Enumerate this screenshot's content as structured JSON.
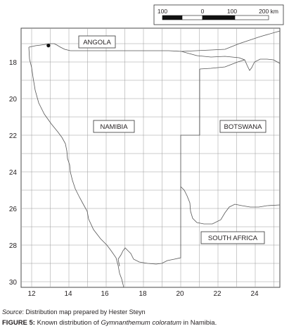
{
  "map": {
    "countries": [
      {
        "id": "angola",
        "name": "ANGOLA"
      },
      {
        "id": "namibia",
        "name": "NAMIBIA"
      },
      {
        "id": "botswana",
        "name": "BOTSWANA"
      },
      {
        "id": "south-africa",
        "name": "SOUTH AFRICA"
      }
    ],
    "x_ticks": [
      "12",
      "14",
      "16",
      "18",
      "20",
      "22",
      "24"
    ],
    "y_ticks": [
      "18",
      "20",
      "22",
      "24",
      "26",
      "28",
      "30"
    ],
    "scale_bar": {
      "labels": [
        "100",
        "0",
        "100",
        "200 km"
      ]
    },
    "record_point": {
      "species": "Gymnanthemum coloratum",
      "lon": 12.9,
      "lat": -17.1
    }
  },
  "caption": {
    "source_label": "Source",
    "source_text": ": Distribution map prepared by Hester Steyn",
    "figure_label": "FIGURE 5:",
    "figure_text_pre": " Known distribution of ",
    "figure_species": "Gymnanthemum coloratum",
    "figure_text_post": " in Namibia."
  }
}
